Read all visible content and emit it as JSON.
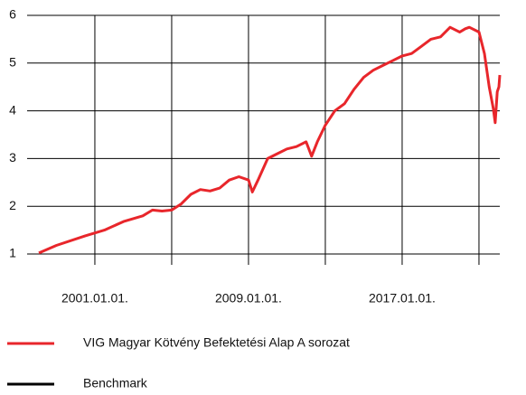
{
  "chart_data": {
    "type": "line",
    "x": [
      "1998-02-01",
      "1999-01-01",
      "2000-07-01",
      "2001-07-01",
      "2002-07-01",
      "2003-07-01",
      "2004-01-01",
      "2004-07-01",
      "2005-01-01",
      "2005-07-01",
      "2006-01-01",
      "2006-07-01",
      "2007-01-01",
      "2007-07-01",
      "2008-01-01",
      "2008-07-01",
      "2009-01-01",
      "2009-03-15",
      "2009-07-01",
      "2010-01-01",
      "2010-07-01",
      "2011-01-01",
      "2011-07-01",
      "2012-01-01",
      "2012-04-15",
      "2012-08-01",
      "2013-01-01",
      "2013-07-01",
      "2014-01-01",
      "2014-07-01",
      "2015-01-01",
      "2015-07-01",
      "2016-01-01",
      "2016-07-01",
      "2017-01-01",
      "2017-07-01",
      "2018-01-01",
      "2018-07-01",
      "2019-01-01",
      "2019-07-01",
      "2020-01-01",
      "2020-04-15",
      "2020-07-01",
      "2021-01-01",
      "2021-04-15",
      "2021-07-15",
      "2021-10-01",
      "2021-11-05",
      "2021-12-15",
      "2022-01-15",
      "2022-02-01"
    ],
    "series": [
      {
        "name": "VIG Magyar Kötvény Befektetési Alap A sorozat",
        "color": "#e8262b",
        "values": [
          1.02,
          1.18,
          1.38,
          1.5,
          1.68,
          1.8,
          1.92,
          1.9,
          1.92,
          2.05,
          2.25,
          2.35,
          2.32,
          2.38,
          2.55,
          2.62,
          2.55,
          2.3,
          2.55,
          3.0,
          3.1,
          3.2,
          3.25,
          3.35,
          3.05,
          3.35,
          3.7,
          4.0,
          4.15,
          4.45,
          4.7,
          4.85,
          4.95,
          5.05,
          5.15,
          5.2,
          5.35,
          5.5,
          5.55,
          5.75,
          5.65,
          5.72,
          5.75,
          5.65,
          5.2,
          4.5,
          4.05,
          3.75,
          4.4,
          4.5,
          4.75
        ]
      },
      {
        "name": "Benchmark",
        "color": "#000000",
        "values": [
          null,
          null,
          null,
          null,
          null,
          null,
          null,
          null,
          null,
          null,
          null,
          null,
          null,
          null,
          null,
          null,
          null,
          null,
          null,
          null,
          null,
          null,
          null,
          null,
          null,
          null,
          null,
          null,
          null,
          null,
          null,
          null,
          null,
          null,
          null,
          null,
          null,
          null,
          null,
          null,
          null,
          null,
          null,
          null,
          null,
          null,
          null,
          null,
          null,
          null,
          null
        ]
      }
    ],
    "xlim": [
      "1998-02-01",
      "2022-02-01"
    ],
    "xticks": [
      {
        "value": "2001-01-01",
        "label": "2001.01.01."
      },
      {
        "value": "2005-01-01",
        "label": null
      },
      {
        "value": "2009-01-01",
        "label": "2009.01.01."
      },
      {
        "value": "2013-01-01",
        "label": null
      },
      {
        "value": "2017-01-01",
        "label": "2017.01.01."
      },
      {
        "value": "2021-01-01",
        "label": null
      }
    ],
    "ylim": [
      1,
      6
    ],
    "yticks": [
      1,
      2,
      3,
      4,
      5,
      6
    ],
    "grid": true
  }
}
